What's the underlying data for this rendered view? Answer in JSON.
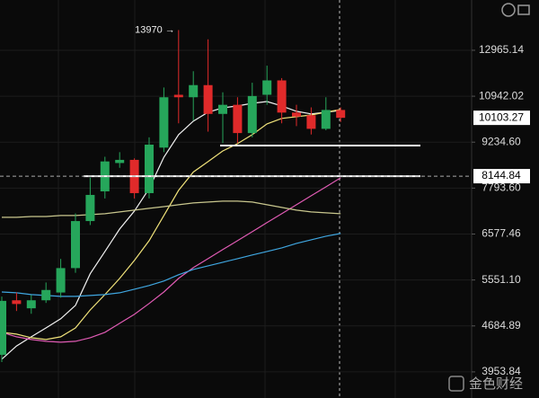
{
  "chart_data": {
    "type": "candlestick",
    "log_scale": true,
    "grid": true,
    "ylim": [
      3590,
      15610
    ],
    "yticks": [
      12965.14,
      10942.02,
      {
        "value": 9234.6,
        "label": "9234.60"
      },
      {
        "value": 7793.6,
        "label": "7793.60"
      },
      6577.46,
      {
        "value": 5551.1,
        "label": "5551.10"
      },
      4684.89,
      3953.84
    ],
    "up_color": "#26a65b",
    "down_color": "#e02a2a",
    "candles": {
      "open": [
        4211,
        5150,
        5000,
        5150,
        5300,
        5800,
        6900,
        7700,
        8550,
        8650,
        7650,
        9050,
        11000,
        10900,
        11400,
        10250,
        10600,
        9550,
        11000,
        11600,
        10300,
        10200,
        9700,
        10400
      ],
      "high": [
        5220,
        5300,
        5250,
        5500,
        6000,
        7100,
        8100,
        8750,
        8900,
        8700,
        9400,
        11300,
        13970,
        12000,
        13500,
        11100,
        10900,
        11500,
        12250,
        11700,
        10600,
        10500,
        10900,
        10500
      ],
      "low": [
        4100,
        4950,
        4900,
        5100,
        5200,
        5700,
        6800,
        7500,
        8400,
        7500,
        7500,
        8900,
        9900,
        10000,
        9600,
        9200,
        9200,
        9400,
        10600,
        9900,
        9800,
        9500,
        9650,
        9950
      ],
      "close": [
        5139,
        5080,
        5150,
        5350,
        5800,
        6900,
        7600,
        8600,
        8650,
        7650,
        9150,
        10900,
        10900,
        11400,
        10250,
        10600,
        9550,
        10950,
        11600,
        10300,
        10150,
        9700,
        10400,
        10103.27
      ]
    },
    "series": [
      {
        "color": "#f2f2f2",
        "values": [
          4143,
          4350,
          4500,
          4650,
          4810,
          5054,
          5680,
          6167,
          6700,
          7160,
          7779,
          8735,
          9492,
          9980,
          10313,
          10485,
          10555,
          10659,
          10730,
          10555,
          10350,
          10250,
          10313,
          10382
        ]
      },
      {
        "color": "#f0e27a",
        "values": [
          4575,
          4545,
          4485,
          4455,
          4500,
          4650,
          4970,
          5260,
          5583,
          5966,
          6418,
          7042,
          7728,
          8270,
          8593,
          8940,
          9182,
          9492,
          9880,
          10080,
          10143,
          10210,
          10313,
          10417
        ]
      },
      {
        "color": "#e05bb4",
        "values": [
          4575,
          4500,
          4455,
          4426,
          4412,
          4426,
          4485,
          4575,
          4729,
          4889,
          5090,
          5311,
          5583,
          5810,
          6005,
          6210,
          6418,
          6635,
          6860,
          7089,
          7328,
          7576,
          7830,
          8095
        ]
      },
      {
        "color": "#3fa6e0",
        "values": [
          5311,
          5294,
          5260,
          5242,
          5224,
          5224,
          5242,
          5260,
          5294,
          5365,
          5438,
          5530,
          5660,
          5771,
          5848,
          5927,
          6005,
          6088,
          6167,
          6250,
          6355,
          6440,
          6525,
          6590
        ]
      },
      {
        "color": "#c9c78e",
        "values": [
          6995,
          6995,
          7018,
          7018,
          7042,
          7042,
          7065,
          7089,
          7137,
          7184,
          7231,
          7279,
          7328,
          7377,
          7402,
          7427,
          7427,
          7402,
          7328,
          7255,
          7184,
          7137,
          7113,
          7089
        ]
      }
    ],
    "levels": [
      9120,
      8144.84
    ],
    "annotation": "13970 →",
    "watermark": "金色财经"
  }
}
